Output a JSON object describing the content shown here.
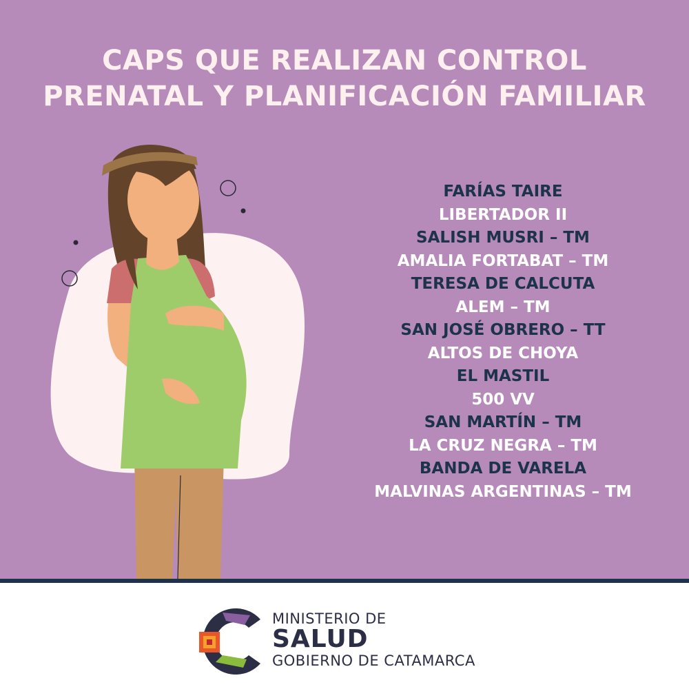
{
  "title": {
    "line1": "CAPS QUE REALIZAN CONTROL",
    "line2": "PRENATAL Y PLANIFICACIÓN FAMILIAR"
  },
  "caps_list": [
    "FARÍAS TAIRE",
    "LIBERTADOR II",
    "SALISH MUSRI – TM",
    "AMALIA FORTABAT – TM",
    "TERESA DE CALCUTA",
    "ALEM – TM",
    "SAN JOSÉ OBRERO – TT",
    "ALTOS DE CHOYA",
    "EL MASTIL",
    "500 VV",
    "SAN MARTÍN – TM",
    "LA CRUZ NEGRA – TM",
    "BANDA DE VARELA",
    "MALVINAS ARGENTINAS – TM"
  ],
  "footer": {
    "line1": "MINISTERIO DE",
    "line2": "SALUD",
    "line3": "GOBIERNO DE CATAMARCA"
  },
  "colors": {
    "background": "#b68bba",
    "title": "#fdf0ee",
    "dark_text": "#1d3349",
    "light_text": "#ffffff"
  }
}
